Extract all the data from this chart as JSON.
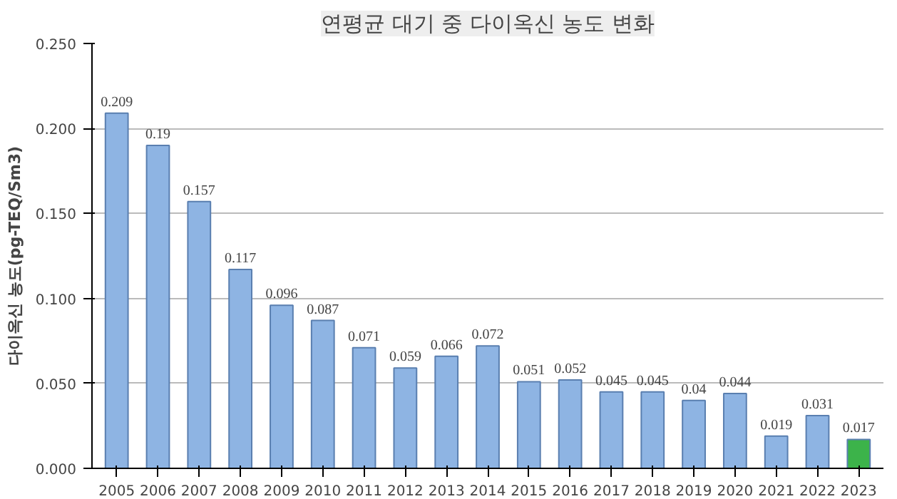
{
  "chart_data": {
    "type": "bar",
    "title": "연평균 대기 중 다이옥신 농도 변화",
    "ylabel": "다이옥신 농도(pg-TEQ/Sm3)",
    "categories": [
      "2005",
      "2006",
      "2007",
      "2008",
      "2009",
      "2010",
      "2011",
      "2012",
      "2013",
      "2014",
      "2015",
      "2016",
      "2017",
      "2018",
      "2019",
      "2020",
      "2021",
      "2022",
      "2023"
    ],
    "values": [
      0.209,
      0.19,
      0.157,
      0.117,
      0.096,
      0.087,
      0.071,
      0.059,
      0.066,
      0.072,
      0.051,
      0.052,
      0.045,
      0.045,
      0.04,
      0.044,
      0.019,
      0.031,
      0.017
    ],
    "colors": [
      "#8eb4e3",
      "#8eb4e3",
      "#8eb4e3",
      "#8eb4e3",
      "#8eb4e3",
      "#8eb4e3",
      "#8eb4e3",
      "#8eb4e3",
      "#8eb4e3",
      "#8eb4e3",
      "#8eb4e3",
      "#8eb4e3",
      "#8eb4e3",
      "#8eb4e3",
      "#8eb4e3",
      "#8eb4e3",
      "#8eb4e3",
      "#8eb4e3",
      "#3cb34a"
    ],
    "ylim": [
      0,
      0.25
    ],
    "yticks": [
      {
        "value": 0,
        "label": "0.000"
      },
      {
        "value": 0.05,
        "label": "0.050"
      },
      {
        "value": 0.1,
        "label": "0.100"
      },
      {
        "value": 0.15,
        "label": "0.150"
      },
      {
        "value": 0.2,
        "label": "0.200"
      },
      {
        "value": 0.25,
        "label": "0.250"
      }
    ],
    "grid": "y",
    "data_labels": true
  }
}
